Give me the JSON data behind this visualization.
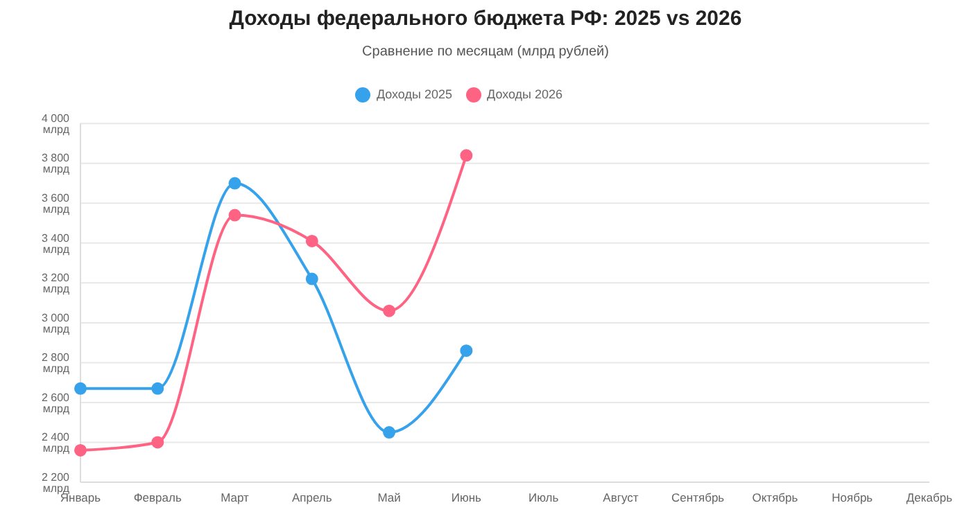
{
  "chart_data": {
    "type": "line",
    "title": "Доходы федерального бюджета РФ: 2025 vs 2026",
    "subtitle": "Сравнение по месяцам (млрд рублей)",
    "categories": [
      "Январь",
      "Февраль",
      "Март",
      "Апрель",
      "Май",
      "Июнь",
      "Июль",
      "Август",
      "Сентябрь",
      "Октябрь",
      "Ноябрь",
      "Декабрь"
    ],
    "series": [
      {
        "name": "Доходы 2025",
        "color": "#36a2eb",
        "values": [
          2670,
          2670,
          3700,
          3220,
          2450,
          2860,
          null,
          null,
          null,
          null,
          null,
          null
        ]
      },
      {
        "name": "Доходы 2026",
        "color": "#ff6384",
        "values": [
          2360,
          2400,
          3540,
          3410,
          3060,
          3840,
          null,
          null,
          null,
          null,
          null,
          null
        ]
      }
    ],
    "ylim": [
      2200,
      4000
    ],
    "yticks": [
      {
        "value": 2200,
        "label": "2 200 млрд"
      },
      {
        "value": 2400,
        "label": "2 400 млрд"
      },
      {
        "value": 2600,
        "label": "2 600 млрд"
      },
      {
        "value": 2800,
        "label": "2 800 млрд"
      },
      {
        "value": 3000,
        "label": "3 000 млрд"
      },
      {
        "value": 3200,
        "label": "3 200 млрд"
      },
      {
        "value": 3400,
        "label": "3 400 млрд"
      },
      {
        "value": 3600,
        "label": "3 600 млрд"
      },
      {
        "value": 3800,
        "label": "3 800 млрд"
      },
      {
        "value": 4000,
        "label": "4 000 млрд"
      }
    ],
    "grid": "y",
    "legend": "top",
    "marker": "circle",
    "line_style": "solid"
  }
}
